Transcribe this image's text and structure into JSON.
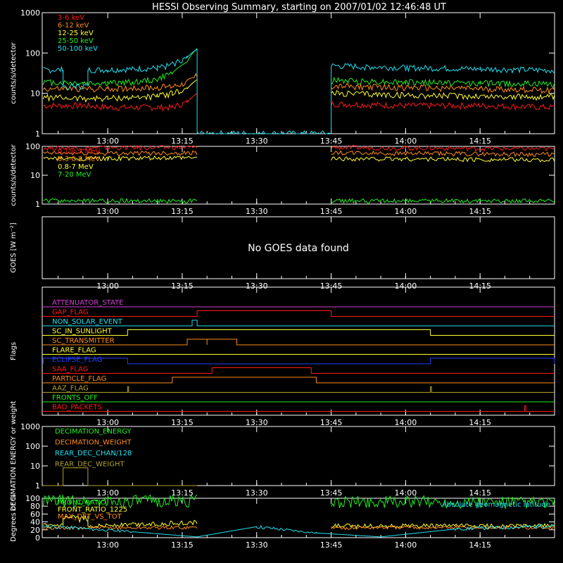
{
  "title": "HESSI Observing Summary, starting on 2007/01/02 12:46:48 UT",
  "colors": {
    "white": "#ffffff",
    "red": "#ff1a1a",
    "orange": "#ff8c1a",
    "yellow": "#ffff33",
    "green": "#22ee22",
    "cyan": "#22e0f0",
    "magenta": "#d040d0",
    "blue": "#2040ff",
    "olive": "#b0a030",
    "black": "#000000"
  },
  "time_axis": {
    "start": "12:46:48",
    "end": "14:30:00",
    "ticks": [
      "13:00",
      "13:15",
      "13:30",
      "13:45",
      "14:00",
      "14:15"
    ]
  },
  "chart_data": [
    {
      "id": "lightcurve",
      "type": "line",
      "ylabel": "counts/s/detector",
      "yscale": "log",
      "ylim": [
        1,
        1000
      ],
      "yticks": [
        "1",
        "10",
        "100",
        "1000"
      ],
      "legend": "top-left",
      "series": [
        {
          "name": "3-6 keV",
          "color": "red",
          "x": [
            "12:47",
            "12:55",
            "13:00",
            "13:05",
            "13:10",
            "13:13",
            "13:16",
            "13:18",
            "13:18",
            "13:45",
            "13:45",
            "14:00",
            "14:15",
            "14:30"
          ],
          "y": [
            5,
            5,
            4.5,
            4.5,
            4.5,
            4.5,
            6,
            10,
            null,
            null,
            5.5,
            5,
            5,
            4.5
          ]
        },
        {
          "name": "6-12 keV",
          "color": "orange",
          "x": [
            "12:47",
            "12:55",
            "13:00",
            "13:05",
            "13:10",
            "13:13",
            "13:16",
            "13:18",
            "13:18",
            "13:45",
            "13:45",
            "14:00",
            "14:15",
            "14:30"
          ],
          "y": [
            13,
            13,
            13,
            13.5,
            14,
            15,
            19,
            28,
            null,
            null,
            15,
            14,
            13,
            12
          ]
        },
        {
          "name": "12-25 keV",
          "color": "yellow",
          "x": [
            "12:47",
            "12:55",
            "13:00",
            "13:05",
            "13:10",
            "13:13",
            "13:16",
            "13:18",
            "13:18",
            "13:45",
            "13:45",
            "14:00",
            "14:15",
            "14:30"
          ],
          "y": [
            8,
            7.5,
            7.5,
            8,
            8.5,
            10,
            13,
            22,
            null,
            null,
            10,
            9,
            8.5,
            8
          ]
        },
        {
          "name": "25-50 keV",
          "color": "green",
          "x": [
            "12:47",
            "12:55",
            "13:00",
            "13:05",
            "13:10",
            "13:13",
            "13:16",
            "13:18",
            "13:18",
            "13:45",
            "13:45",
            "14:00",
            "14:15",
            "14:30"
          ],
          "y": [
            19,
            18,
            18,
            19,
            22,
            32,
            60,
            130,
            null,
            null,
            21,
            19,
            18,
            17
          ]
        },
        {
          "name": "50-100 keV",
          "color": "cyan",
          "x": [
            "12:47",
            "12:51",
            "12:51",
            "12:56",
            "12:56",
            "13:00",
            "13:05",
            "13:10",
            "13:13",
            "13:16",
            "13:18",
            "13:18",
            "13:45",
            "13:45",
            "14:00",
            "14:15",
            "14:30"
          ],
          "y": [
            38,
            38,
            15,
            15,
            38,
            38,
            40,
            42,
            52,
            78,
            125,
            1,
            1,
            48,
            43,
            40,
            37
          ]
        }
      ]
    },
    {
      "id": "high_energy",
      "type": "line",
      "ylabel": "counts/s/detector",
      "yscale": "log",
      "ylim": [
        1,
        100
      ],
      "yticks": [
        "1",
        "10",
        "100"
      ],
      "legend": "top-left",
      "series": [
        {
          "name": "0.1-0.3 MeV",
          "color": "red",
          "x": [
            "12:47",
            "13:00",
            "13:18",
            "13:18",
            "13:45",
            "13:45",
            "14:00",
            "14:30"
          ],
          "y": [
            88,
            90,
            92,
            null,
            null,
            92,
            88,
            82
          ]
        },
        {
          "name": "0.3-0.8 MeV",
          "color": "orange",
          "x": [
            "12:47",
            "13:00",
            "13:18",
            "13:18",
            "13:45",
            "13:45",
            "14:00",
            "14:30"
          ],
          "y": [
            58,
            58,
            60,
            null,
            null,
            60,
            57,
            53
          ]
        },
        {
          "name": "0.8-7 MeV",
          "color": "yellow",
          "x": [
            "12:47",
            "13:00",
            "13:18",
            "13:18",
            "13:45",
            "13:45",
            "14:00",
            "14:30"
          ],
          "y": [
            38,
            38,
            40,
            null,
            null,
            38,
            37,
            34
          ]
        },
        {
          "name": "7-20 MeV",
          "color": "green",
          "x": [
            "12:47",
            "13:18",
            "13:18",
            "13:45",
            "13:45",
            "14:30"
          ],
          "y": [
            1.3,
            1.3,
            null,
            null,
            1.3,
            1.3
          ]
        }
      ]
    },
    {
      "id": "goes",
      "type": "line",
      "ylabel": "GOES [W m⁻²]",
      "message": "No GOES data found",
      "series": []
    },
    {
      "id": "flags",
      "type": "line",
      "ylabel": "Flags",
      "series": [
        {
          "name": "ATTENUATOR_STATE",
          "color": "magenta",
          "segments": []
        },
        {
          "name": "GAP_FLAG",
          "color": "red",
          "segments": [
            [
              "13:18",
              "13:45"
            ]
          ]
        },
        {
          "name": "NON_SOLAR_EVENT",
          "color": "cyan",
          "segments": [
            [
              "13:17",
              "13:18"
            ]
          ]
        },
        {
          "name": "SC_IN_SUNLIGHT",
          "color": "yellow",
          "segments": [
            [
              "13:04",
              "14:05"
            ]
          ]
        },
        {
          "name": "SC_TRANSMITTER",
          "color": "orange",
          "segments": [
            [
              "13:16",
              "13:20"
            ],
            [
              "13:20",
              "13:26"
            ]
          ]
        },
        {
          "name": "FLARE_FLAG",
          "color": "yellow",
          "segments": []
        },
        {
          "name": "ECLIPSE_FLAG",
          "color": "blue",
          "segments": [
            [
              "12:47",
              "13:04"
            ],
            [
              "14:05",
              "14:30"
            ]
          ]
        },
        {
          "name": "SAA_FLAG",
          "color": "red",
          "segments": [
            [
              "13:21",
              "13:41"
            ]
          ]
        },
        {
          "name": "PARTICLE_FLAG",
          "color": "orange",
          "segments": [
            [
              "13:13",
              "13:42"
            ]
          ]
        },
        {
          "name": "AAZ_FLAG",
          "color": "olive",
          "segments": [
            [
              "13:04",
              "13:04"
            ],
            [
              "14:05",
              "14:05"
            ]
          ]
        },
        {
          "name": "FRONTS_OFF",
          "color": "green",
          "segments": []
        },
        {
          "name": "BAD_PACKETS",
          "color": "red",
          "segments": [
            [
              "14:24",
              "14:24"
            ]
          ]
        }
      ]
    },
    {
      "id": "decimation",
      "type": "line",
      "ylabel": "DECIMATION ENERGY or weight",
      "yscale": "log",
      "ylim": [
        1,
        1000
      ],
      "yticks": [
        "1",
        "10",
        "100",
        "1000"
      ],
      "series": [
        {
          "name": "DECIMATION_ENERGY",
          "color": "green",
          "x": [],
          "y": []
        },
        {
          "name": "DECIMATION_WEIGHT",
          "color": "orange",
          "x": [],
          "y": []
        },
        {
          "name": "REAR_DEC_CHAN/128",
          "color": "cyan",
          "x": [],
          "y": []
        },
        {
          "name": "REAR_DEC_WEIGHT",
          "color": "olive",
          "x": [
            "12:47",
            "12:51",
            "12:51",
            "12:56",
            "12:56",
            "13:18"
          ],
          "y": [
            1,
            1,
            8,
            8,
            1,
            1
          ]
        }
      ]
    },
    {
      "id": "ratios",
      "type": "line",
      "ylabel": "Degrees or %",
      "ylim": [
        0,
        100
      ],
      "yticks": [
        "0",
        "20",
        "40",
        "60",
        "80",
        "100"
      ],
      "annotation": "Absolute geomagnetic latitude",
      "series": [
        {
          "name": "FRONT_RATIO",
          "color": "green",
          "x": [
            "12:47",
            "13:00",
            "13:18",
            "13:18",
            "13:45",
            "13:45",
            "14:00",
            "14:30"
          ],
          "y": [
            93,
            92,
            93,
            null,
            null,
            90,
            91,
            89
          ]
        },
        {
          "name": "FRONT_RATIO_1225",
          "color": "yellow",
          "x": [
            "12:47",
            "12:51",
            "12:51",
            "12:56",
            "12:56",
            "13:18",
            "13:18",
            "13:45",
            "13:45",
            "14:30"
          ],
          "y": [
            30,
            30,
            48,
            48,
            30,
            38,
            null,
            null,
            30,
            30
          ]
        },
        {
          "name": "MAX_DET_VS_TOT",
          "color": "orange",
          "x": [
            "12:47",
            "13:00",
            "13:18",
            "13:18",
            "13:45",
            "13:45",
            "14:00",
            "14:30"
          ],
          "y": [
            24,
            25,
            26,
            null,
            null,
            25,
            26,
            25
          ]
        },
        {
          "name": "Absolute geomagnetic latitude",
          "color": "cyan",
          "x": [
            "12:47",
            "13:05",
            "13:18",
            "13:30",
            "13:42",
            "13:55",
            "14:10",
            "14:30"
          ],
          "y": [
            30,
            15,
            2,
            28,
            12,
            2,
            22,
            30
          ]
        }
      ]
    }
  ]
}
